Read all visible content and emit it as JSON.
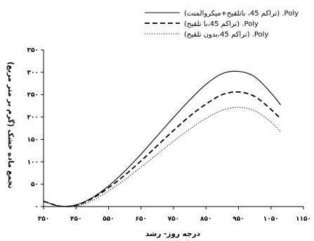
{
  "chart_data": {
    "type": "line",
    "xlabel": "درجه روز- رشد",
    "ylabel": "تجمع ماده خشک (گرم بر متر مربع)",
    "xlim": [
      350,
      1150
    ],
    "ylim": [
      0,
      350
    ],
    "xticks": [
      350,
      450,
      550,
      650,
      750,
      850,
      950,
      1050,
      1150
    ],
    "yticks": [
      0,
      50,
      100,
      150,
      200,
      250,
      300,
      350
    ],
    "xtick_labels": [
      "۳۵۰",
      "۴۵۰",
      "۵۵۰",
      "۶۵۰",
      "۷۵۰",
      "۸۵۰",
      "۹۵۰",
      "۱۰۵۰",
      "۱۱۵۰"
    ],
    "ytick_labels": [
      "۰",
      "۵۰",
      "۱۰۰",
      "۱۵۰",
      "۲۰۰",
      "۲۵۰",
      "۳۰۰",
      "۳۵۰"
    ],
    "grid": false,
    "legend_position": "top-right",
    "x": [
      350,
      400,
      450,
      500,
      550,
      600,
      650,
      700,
      750,
      800,
      850,
      900,
      950,
      1000,
      1050,
      1080
    ],
    "series": [
      {
        "name": "(تراکم 45، باتلقیح+میکروالمنت) .Poly",
        "style": "solid",
        "values": [
          12,
          1,
          4,
          20,
          46,
          79,
          117,
          158,
          199,
          238,
          273,
          297,
          302,
          290,
          254,
          227
        ]
      },
      {
        "name": "(تراکم 45،با تلقیح) .Poly",
        "style": "dashed",
        "values": [
          12,
          1,
          3,
          18,
          42,
          70,
          102,
          136,
          170,
          202,
          229,
          250,
          256,
          246,
          217,
          196
        ]
      },
      {
        "name": "(تراکم 45،بدون تلقیح) .Poly",
        "style": "dotted",
        "values": [
          12,
          1,
          1,
          13,
          35,
          60,
          88,
          117,
          146,
          173,
          197,
          215,
          222,
          214,
          189,
          166
        ]
      }
    ]
  }
}
